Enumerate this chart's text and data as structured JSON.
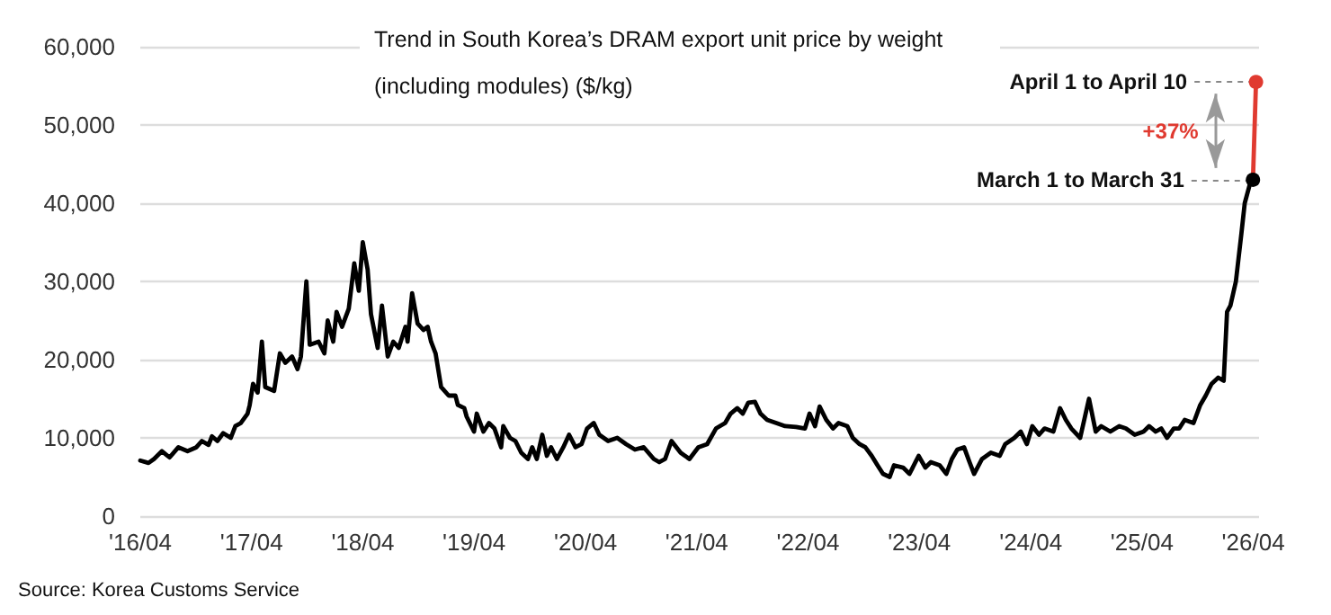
{
  "chart_data": {
    "type": "line",
    "title": "Trend in South Korea’s DRAM export unit price by weight (including modules) ($/kg)",
    "annotations": [
      {
        "text": "April 1 to April 10",
        "x": "2026-04-10",
        "y": 55500
      },
      {
        "text": "March 1 to March 31",
        "x": "2026-03-31",
        "y": 43000
      },
      {
        "text": "+37%",
        "x": "2026-04-05",
        "y": 49250
      },
      "Source: Korea Customs Service"
    ],
    "xlim": [
      "2016-04-01",
      "2026-04-20"
    ],
    "xticks": [
      {
        "value": "2016-04",
        "label": "'16/04"
      },
      {
        "value": "2017-04",
        "label": "'17/04"
      },
      {
        "value": "2018-04",
        "label": "'18/04"
      },
      {
        "value": "2019-04",
        "label": "'19/04"
      },
      {
        "value": "2020-04",
        "label": "'20/04"
      },
      {
        "value": "2021-04",
        "label": "'21/04"
      },
      {
        "value": "2022-04",
        "label": "'22/04"
      },
      {
        "value": "2023-04",
        "label": "'23/04"
      },
      {
        "value": "2024-04",
        "label": "'24/04"
      },
      {
        "value": "2025-04",
        "label": "'25/04"
      },
      {
        "value": "2026-04",
        "label": "'26/04"
      }
    ],
    "ylim": [
      0,
      60000
    ],
    "yticks": [
      0,
      {
        "value": 10000,
        "label": "10,000"
      },
      {
        "value": 20000,
        "label": "20,000"
      },
      {
        "value": 30000,
        "label": "30,000"
      },
      {
        "value": 40000,
        "label": "40,000"
      },
      {
        "value": 50000,
        "label": "50,000"
      },
      {
        "value": 60000,
        "label": "60,000"
      }
    ],
    "grid": "y",
    "marker": "none",
    "line_style": "solid",
    "series": [
      {
        "color": "#000000",
        "x": [
          "2016-04-01",
          "2016-04-28",
          "2016-05-16",
          "2016-06-11",
          "2016-07-06",
          "2016-08-04",
          "2016-09-03",
          "2016-10-02",
          "2016-10-20",
          "2016-11-11",
          "2016-11-22",
          "2016-12-10",
          "2016-12-29",
          "2017-01-23",
          "2017-02-07",
          "2017-02-25",
          "2017-03-19",
          "2017-03-26",
          "2017-04-06",
          "2017-04-21",
          "2017-05-05",
          "2017-05-16",
          "2017-06-14",
          "2017-07-03",
          "2017-07-21",
          "2017-08-12",
          "2017-08-30",
          "2017-09-10",
          "2017-09-28",
          "2017-10-09",
          "2017-11-07",
          "2017-11-26",
          "2017-12-07",
          "2017-12-25",
          "2018-01-05",
          "2018-01-23",
          "2018-02-14",
          "2018-03-04",
          "2018-03-19",
          "2018-04-01",
          "2018-04-17",
          "2018-04-28",
          "2018-05-20",
          "2018-06-03",
          "2018-06-22",
          "2018-07-10",
          "2018-07-28",
          "2018-08-19",
          "2018-08-26",
          "2018-09-10",
          "2018-09-28",
          "2018-10-17",
          "2018-10-31",
          "2018-11-11",
          "2018-11-26",
          "2018-12-14",
          "2019-01-08",
          "2019-01-30",
          "2019-02-07",
          "2019-02-28",
          "2019-03-08",
          "2019-04-01",
          "2019-04-10",
          "2019-05-02",
          "2019-05-20",
          "2019-06-07",
          "2019-06-29",
          "2019-07-06",
          "2019-07-28",
          "2019-08-15",
          "2019-09-03",
          "2019-09-25",
          "2019-10-09",
          "2019-10-24",
          "2019-11-11",
          "2019-11-26",
          "2019-12-10",
          "2019-12-29",
          "2020-01-19",
          "2020-02-07",
          "2020-02-28",
          "2020-03-19",
          "2020-04-06",
          "2020-04-28",
          "2020-05-16",
          "2020-06-14",
          "2020-07-14",
          "2020-08-12",
          "2020-09-10",
          "2020-10-09",
          "2020-11-11",
          "2020-11-29",
          "2020-12-18",
          "2021-01-08",
          "2021-02-07",
          "2021-03-08",
          "2021-04-06",
          "2021-05-05",
          "2021-06-03",
          "2021-07-03",
          "2021-07-21",
          "2021-08-12",
          "2021-08-30",
          "2021-09-17",
          "2021-10-09",
          "2021-10-27",
          "2021-11-18",
          "2021-12-18",
          "2022-01-16",
          "2022-02-21",
          "2022-03-22",
          "2022-04-06",
          "2022-04-24",
          "2022-05-09",
          "2022-05-31",
          "2022-06-22",
          "2022-07-10",
          "2022-08-08",
          "2022-08-26",
          "2022-09-17",
          "2022-10-06",
          "2022-10-27",
          "2022-11-15",
          "2022-12-03",
          "2022-12-25",
          "2023-01-08",
          "2023-02-07",
          "2023-02-28",
          "2023-03-30",
          "2023-04-21",
          "2023-05-09",
          "2023-06-07",
          "2023-06-29",
          "2023-07-17",
          "2023-08-04",
          "2023-08-26",
          "2023-09-13",
          "2023-09-28",
          "2023-10-24",
          "2023-11-22",
          "2023-12-21",
          "2024-01-08",
          "2024-02-07",
          "2024-02-28",
          "2024-03-19",
          "2024-04-06",
          "2024-04-28",
          "2024-05-16",
          "2024-06-14",
          "2024-07-06",
          "2024-07-25",
          "2024-08-12",
          "2024-09-10",
          "2024-10-09",
          "2024-10-31",
          "2024-11-18",
          "2024-12-18",
          "2025-01-16",
          "2025-02-07",
          "2025-03-08",
          "2025-04-06",
          "2025-04-24",
          "2025-05-16",
          "2025-06-03",
          "2025-06-22",
          "2025-07-14",
          "2025-08-01",
          "2025-08-19",
          "2025-09-17",
          "2025-10-09",
          "2025-10-27",
          "2025-11-15",
          "2025-12-07",
          "2025-12-25",
          "2026-01-05",
          "2026-01-16",
          "2026-02-03",
          "2026-02-21",
          "2026-03-04",
          "2026-03-20",
          "2026-03-31"
        ],
        "values": [
          7100,
          6800,
          7300,
          8300,
          7500,
          8800,
          8300,
          8800,
          9600,
          9100,
          10200,
          9600,
          10600,
          10000,
          11500,
          11900,
          13100,
          14200,
          16900,
          15800,
          22300,
          16500,
          16000,
          20800,
          19600,
          20400,
          18800,
          20400,
          30000,
          21900,
          22300,
          20800,
          25000,
          22300,
          26100,
          24200,
          26500,
          32300,
          28800,
          35000,
          31500,
          25800,
          21500,
          26900,
          20400,
          22300,
          21500,
          24200,
          22300,
          28500,
          24600,
          23800,
          24200,
          22300,
          20800,
          16500,
          15400,
          15400,
          14200,
          13800,
          12700,
          10800,
          13100,
          10800,
          11900,
          11200,
          8800,
          11500,
          10000,
          9600,
          8100,
          7300,
          8800,
          7300,
          10400,
          7700,
          8800,
          7300,
          8800,
          10400,
          8800,
          9200,
          11200,
          11900,
          10400,
          9600,
          10000,
          9200,
          8500,
          8800,
          7300,
          6900,
          7300,
          9600,
          8100,
          7300,
          8800,
          9200,
          11200,
          11900,
          13100,
          13800,
          13100,
          14500,
          14600,
          13100,
          12300,
          11900,
          11500,
          11400,
          11200,
          13100,
          11500,
          14000,
          12300,
          11200,
          11900,
          11500,
          10000,
          9200,
          8800,
          7700,
          6500,
          5400,
          5000,
          6500,
          6200,
          5400,
          7700,
          6200,
          6900,
          6500,
          5400,
          7300,
          8500,
          8800,
          6900,
          5400,
          7300,
          8100,
          7700,
          9200,
          10000,
          10800,
          9200,
          11500,
          10400,
          11200,
          10800,
          13800,
          12300,
          11200,
          10000,
          15000,
          10800,
          11500,
          10800,
          11500,
          11200,
          10400,
          10800,
          11500,
          10800,
          11200,
          10000,
          11200,
          11200,
          12300,
          11900,
          14200,
          15400,
          16900,
          17700,
          17300,
          26100,
          26900,
          30000,
          36100,
          40000,
          42300,
          43000
        ]
      },
      {
        "color": "#e03a30",
        "x": [
          "2026-03-31",
          "2026-04-10"
        ],
        "values": [
          43000,
          55500
        ]
      },
      {
        "type": "scatter",
        "marker": "circle",
        "x": [
          "2026-04-10",
          "2026-03-31"
        ],
        "values": [
          55500,
          43000
        ],
        "colors": [
          "#e03a30",
          "#000000"
        ]
      }
    ]
  }
}
